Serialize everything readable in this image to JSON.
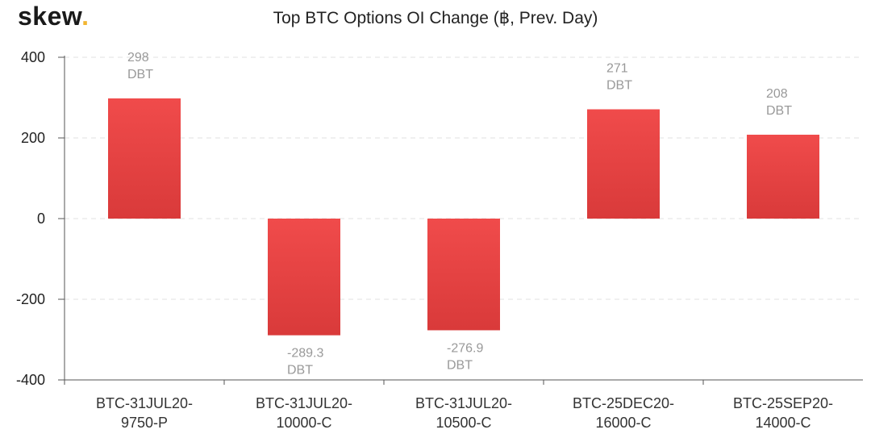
{
  "brand": {
    "name": "skew",
    "dot": "."
  },
  "chart_data": {
    "type": "bar",
    "title": "Top BTC Options OI Change (฿, Prev. Day)",
    "categories": [
      [
        "BTC-31JUL20-",
        "9750-P"
      ],
      [
        "BTC-31JUL20-",
        "10000-C"
      ],
      [
        "BTC-31JUL20-",
        "10500-C"
      ],
      [
        "BTC-25DEC20-",
        "16000-C"
      ],
      [
        "BTC-25SEP20-",
        "14000-C"
      ]
    ],
    "values": [
      298,
      -289.3,
      -276.9,
      271,
      208
    ],
    "data_labels": [
      "298",
      "-289.3",
      "-276.9",
      "271",
      "208"
    ],
    "data_label_unit": "DBT",
    "ylim": [
      -400,
      400
    ],
    "yticks": [
      400,
      200,
      0,
      -200,
      -400
    ],
    "grid": true,
    "colors": {
      "bar_top": "#f04b4b",
      "bar_bottom": "#d93a3a",
      "grid": "#e0e0e0",
      "axis": "#555555"
    }
  }
}
